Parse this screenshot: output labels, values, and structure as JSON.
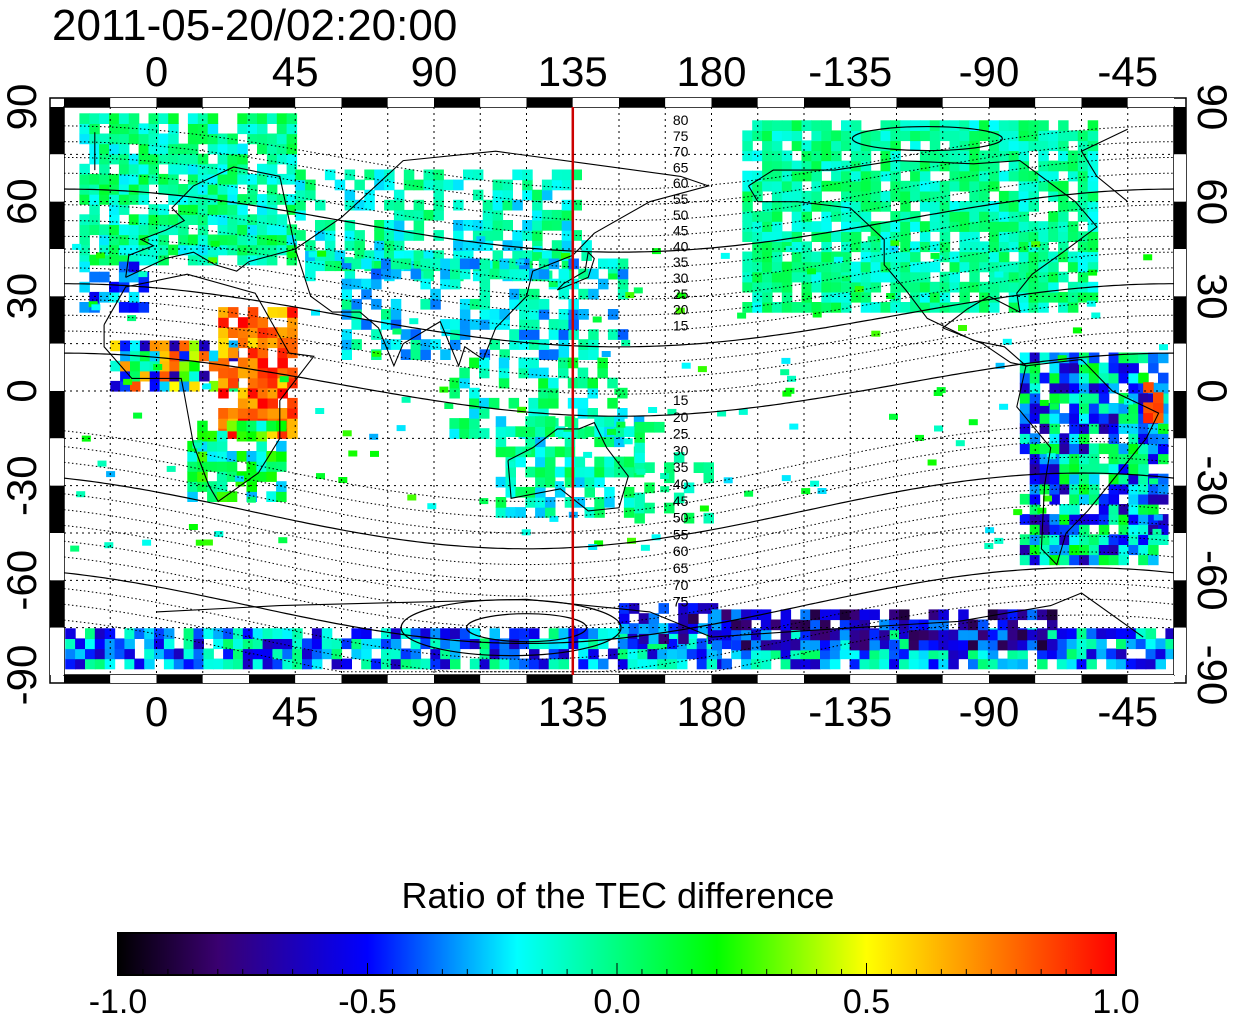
{
  "figure": {
    "timestamp": "2011-05-20/02:20:00",
    "colorbar_title": "Ratio of the TEC difference"
  },
  "map": {
    "projection": "equirectangular",
    "lon_ticks_top": [
      "0",
      "45",
      "90",
      "135",
      "180",
      "-135",
      "-90",
      "-45"
    ],
    "lon_ticks_bottom": [
      "0",
      "45",
      "90",
      "135",
      "180",
      "-135",
      "-90",
      "-45"
    ],
    "lat_ticks_left": [
      "90",
      "60",
      "30",
      "0",
      "-30",
      "-60",
      "-90"
    ],
    "lat_ticks_right": [
      "90",
      "60",
      "30",
      "0",
      "-30",
      "-60",
      "-90"
    ],
    "grid": "dotted, 15 deg",
    "red_meridian_lon": 150,
    "contour_labels_north": [
      "80",
      "75",
      "70",
      "65",
      "60",
      "55",
      "50",
      "45",
      "40",
      "35",
      "30",
      "25",
      "20",
      "15"
    ],
    "contour_labels_south": [
      "15",
      "20",
      "25",
      "30",
      "35",
      "40",
      "45",
      "50",
      "55",
      "60",
      "65",
      "70",
      "75"
    ]
  },
  "colorbar": {
    "min": -1.0,
    "max": 1.0,
    "tick_labels": [
      "-1.0",
      "-0.5",
      "0.0",
      "0.5",
      "1.0"
    ],
    "colors": [
      "#000000",
      "#3a0070",
      "#0000ff",
      "#00ffff",
      "#00ff00",
      "#ffff00",
      "#ff0000"
    ]
  }
}
